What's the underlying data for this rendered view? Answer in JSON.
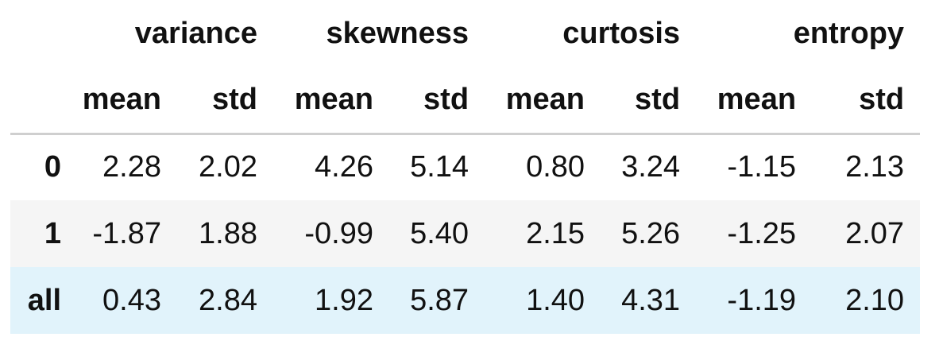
{
  "table": {
    "column_groups": [
      "variance",
      "skewness",
      "curtosis",
      "entropy"
    ],
    "stat_labels": [
      "mean",
      "std",
      "mean",
      "std",
      "mean",
      "std",
      "mean",
      "std"
    ],
    "rows": [
      {
        "index": "0",
        "cells": [
          "2.28",
          "2.02",
          "4.26",
          "5.14",
          "0.80",
          "3.24",
          "-1.15",
          "2.13"
        ]
      },
      {
        "index": "1",
        "cells": [
          "-1.87",
          "1.88",
          "-0.99",
          "5.40",
          "2.15",
          "5.26",
          "-1.25",
          "2.07"
        ]
      },
      {
        "index": "all",
        "cells": [
          "0.43",
          "2.84",
          "1.92",
          "5.87",
          "1.40",
          "4.31",
          "-1.19",
          "2.10"
        ]
      }
    ],
    "colors": {
      "row_1_background": "#f5f5f5",
      "row_all_background": "#e1f3fb",
      "header_rule": "#cfcfcf"
    }
  }
}
